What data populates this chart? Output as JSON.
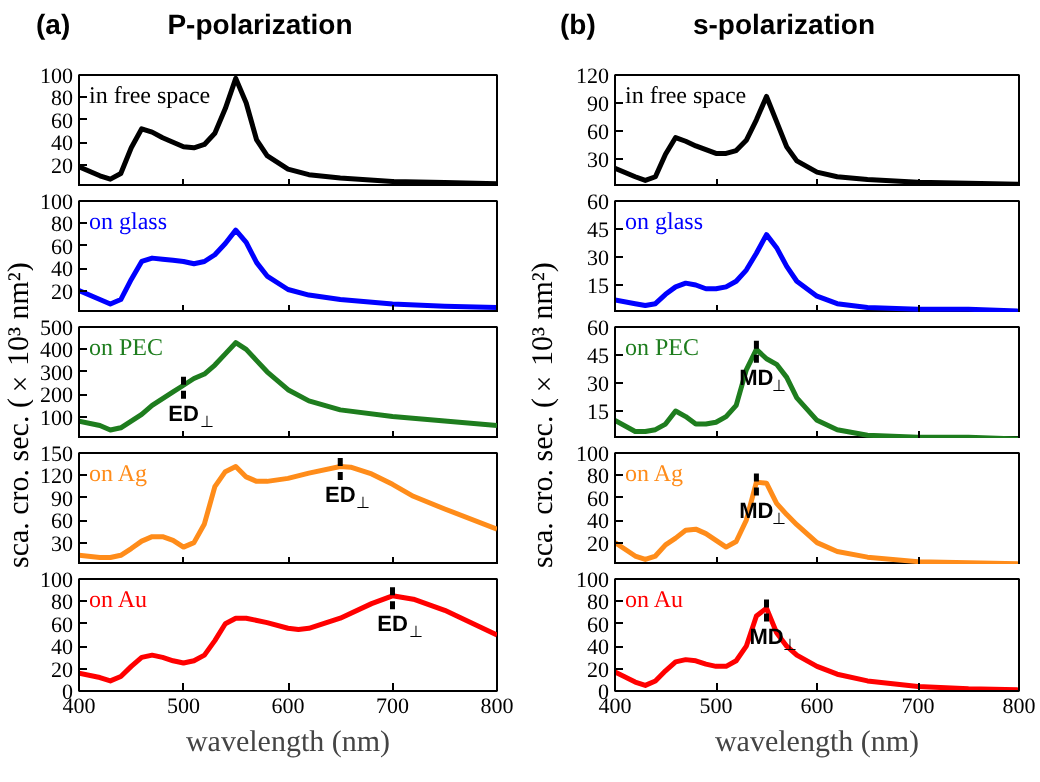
{
  "chart_data": [
    {
      "type": "line",
      "title": "P-polarization",
      "annotations": [
        "(a)"
      ],
      "tick_labels": "y",
      "x": [
        400,
        420,
        430,
        440,
        450,
        460,
        470,
        480,
        490,
        500,
        510,
        520,
        530,
        540,
        550,
        560,
        570,
        580,
        600,
        620,
        650,
        700,
        750,
        800
      ],
      "xlim": [
        400,
        800
      ],
      "xticks": [
        400,
        500,
        600,
        700,
        800
      ],
      "ylim": [
        0,
        100
      ],
      "yticks": [
        20,
        40,
        60,
        80,
        100
      ],
      "series": [
        {
          "name": "in free space",
          "color": "#000000",
          "values": [
            18,
            10,
            7,
            12,
            35,
            52,
            49,
            44,
            40,
            36,
            35,
            38,
            48,
            70,
            97,
            75,
            42,
            28,
            16,
            11,
            8,
            5,
            4,
            3
          ]
        }
      ]
    },
    {
      "type": "line",
      "tick_labels": "y",
      "x": [
        400,
        420,
        430,
        440,
        450,
        460,
        470,
        480,
        490,
        500,
        510,
        520,
        530,
        540,
        550,
        560,
        570,
        580,
        600,
        620,
        650,
        700,
        750,
        800
      ],
      "xlim": [
        400,
        800
      ],
      "xticks": [
        400,
        500,
        600,
        700,
        800
      ],
      "ylim": [
        0,
        100
      ],
      "yticks": [
        20,
        40,
        60,
        80,
        100
      ],
      "series": [
        {
          "name": "on glass",
          "color": "#0000ff",
          "values": [
            20,
            12,
            8,
            12,
            30,
            46,
            49,
            48,
            47,
            46,
            44,
            46,
            52,
            62,
            74,
            63,
            45,
            33,
            21,
            16,
            12,
            8,
            6,
            5
          ]
        }
      ]
    },
    {
      "type": "line",
      "ylabel": "sca. cro. sec. (×10³ nm²)",
      "tick_labels": "y",
      "x": [
        400,
        420,
        430,
        440,
        450,
        460,
        470,
        480,
        490,
        500,
        510,
        520,
        530,
        540,
        550,
        560,
        570,
        580,
        600,
        620,
        650,
        700,
        750,
        800
      ],
      "xlim": [
        400,
        800
      ],
      "xticks": [
        400,
        500,
        600,
        700,
        800
      ],
      "ylim": [
        0,
        500
      ],
      "yticks": [
        100,
        200,
        300,
        400,
        500
      ],
      "annotations": [
        {
          "text": "ED$_{⊥}$",
          "x": 500,
          "y": 240
        }
      ],
      "series": [
        {
          "name": "on PEC",
          "color": "#1e7d1e",
          "values": [
            80,
            60,
            40,
            50,
            80,
            110,
            150,
            180,
            210,
            240,
            270,
            290,
            330,
            380,
            430,
            400,
            350,
            300,
            220,
            170,
            130,
            100,
            80,
            60
          ]
        }
      ]
    },
    {
      "type": "line",
      "tick_labels": "y",
      "x": [
        400,
        420,
        430,
        440,
        450,
        460,
        470,
        480,
        490,
        500,
        510,
        520,
        530,
        540,
        550,
        560,
        570,
        580,
        600,
        620,
        650,
        660,
        680,
        700,
        720,
        750,
        800
      ],
      "xlim": [
        400,
        800
      ],
      "xticks": [
        400,
        500,
        600,
        700,
        800
      ],
      "ylim": [
        0,
        150
      ],
      "yticks": [
        30,
        60,
        90,
        120,
        150
      ],
      "annotations": [
        {
          "text": "ED$_{⊥}$",
          "x": 650,
          "y": 132
        }
      ],
      "series": [
        {
          "name": "on Ag",
          "color": "#ff8c1a",
          "values": [
            13,
            10,
            10,
            13,
            22,
            32,
            38,
            38,
            33,
            24,
            30,
            55,
            105,
            125,
            132,
            118,
            112,
            112,
            116,
            123,
            132,
            131,
            122,
            108,
            92,
            75,
            48
          ]
        }
      ]
    },
    {
      "type": "line",
      "xlabel": "wavelength (nm)",
      "x": [
        400,
        420,
        430,
        440,
        450,
        460,
        470,
        480,
        490,
        500,
        510,
        520,
        530,
        540,
        550,
        560,
        580,
        600,
        610,
        620,
        650,
        680,
        700,
        720,
        750,
        800
      ],
      "xlim": [
        400,
        800
      ],
      "xticks": [
        400,
        500,
        600,
        700,
        800
      ],
      "ylim": [
        0,
        100
      ],
      "yticks": [
        0,
        20,
        40,
        60,
        80,
        100
      ],
      "annotations": [
        {
          "text": "ED$_{⊥}$",
          "x": 700,
          "y": 85
        }
      ],
      "series": [
        {
          "name": "on Au",
          "color": "#ff0000",
          "values": [
            16,
            12,
            9,
            13,
            22,
            30,
            32,
            30,
            27,
            25,
            27,
            32,
            45,
            60,
            65,
            65,
            61,
            56,
            55,
            56,
            65,
            78,
            85,
            82,
            72,
            50
          ]
        }
      ]
    },
    {
      "type": "line",
      "title": "s-polarization",
      "annotations": [
        "(b)"
      ],
      "tick_labels": "y",
      "x": [
        400,
        420,
        430,
        440,
        450,
        460,
        470,
        480,
        490,
        500,
        510,
        520,
        530,
        540,
        550,
        560,
        570,
        580,
        600,
        620,
        650,
        700,
        750,
        800
      ],
      "xlim": [
        400,
        800
      ],
      "xticks": [
        400,
        500,
        600,
        700,
        800
      ],
      "ylim": [
        0,
        120
      ],
      "yticks": [
        30,
        60,
        90,
        120
      ],
      "series": [
        {
          "name": "in free space",
          "color": "#000000",
          "values": [
            20,
            11,
            7,
            11,
            35,
            53,
            49,
            44,
            40,
            36,
            36,
            39,
            50,
            72,
            97,
            70,
            43,
            28,
            16,
            11,
            8,
            5,
            4,
            3
          ]
        }
      ]
    },
    {
      "type": "line",
      "tick_labels": "y",
      "x": [
        400,
        420,
        430,
        440,
        450,
        460,
        470,
        480,
        490,
        500,
        510,
        520,
        530,
        540,
        550,
        560,
        570,
        580,
        600,
        620,
        650,
        700,
        750,
        800
      ],
      "xlim": [
        400,
        800
      ],
      "xticks": [
        400,
        500,
        600,
        700,
        800
      ],
      "ylim": [
        0,
        60
      ],
      "yticks": [
        15,
        30,
        45,
        60
      ],
      "series": [
        {
          "name": "on glass",
          "color": "#0000ff",
          "values": [
            7,
            5,
            4,
            5,
            10,
            14,
            16,
            15,
            13,
            13,
            14,
            17,
            23,
            32,
            42,
            35,
            25,
            17,
            9,
            5,
            3,
            2,
            2,
            1
          ]
        }
      ]
    },
    {
      "type": "line",
      "ylabel": "sca. cro. sec. (×10³ nm²)",
      "tick_labels": "y",
      "x": [
        400,
        420,
        430,
        440,
        450,
        460,
        470,
        480,
        490,
        500,
        510,
        520,
        530,
        540,
        550,
        560,
        570,
        580,
        600,
        620,
        650,
        700,
        750,
        800
      ],
      "xlim": [
        400,
        800
      ],
      "xticks": [
        400,
        500,
        600,
        700,
        800
      ],
      "ylim": [
        0,
        60
      ],
      "yticks": [
        15,
        30,
        45,
        60
      ],
      "annotations": [
        {
          "text": "MD$_{⊥}$",
          "x": 540,
          "y": 48
        }
      ],
      "series": [
        {
          "name": "on PEC",
          "color": "#1e7d1e",
          "values": [
            10,
            4,
            4,
            5,
            8,
            15,
            12,
            8,
            8,
            9,
            12,
            18,
            37,
            48,
            43,
            40,
            33,
            22,
            10,
            5,
            2,
            1,
            1,
            0
          ]
        }
      ]
    },
    {
      "type": "line",
      "tick_labels": "y",
      "x": [
        400,
        420,
        430,
        440,
        450,
        460,
        470,
        480,
        490,
        500,
        510,
        520,
        530,
        540,
        550,
        560,
        570,
        580,
        600,
        620,
        650,
        700,
        750,
        800
      ],
      "xlim": [
        400,
        800
      ],
      "xticks": [
        400,
        500,
        600,
        700,
        800
      ],
      "ylim": [
        0,
        100
      ],
      "yticks": [
        20,
        40,
        60,
        80,
        100
      ],
      "annotations": [
        {
          "text": "MD$_{⊥}$",
          "x": 540,
          "y": 74
        }
      ],
      "series": [
        {
          "name": "on Ag",
          "color": "#ff8c1a",
          "values": [
            20,
            8,
            5,
            8,
            18,
            24,
            31,
            32,
            28,
            22,
            16,
            21,
            40,
            74,
            73,
            55,
            45,
            36,
            20,
            12,
            7,
            3,
            2,
            1
          ]
        }
      ]
    },
    {
      "type": "line",
      "xlabel": "wavelength (nm)",
      "x": [
        400,
        420,
        430,
        440,
        450,
        460,
        470,
        480,
        490,
        500,
        510,
        520,
        530,
        540,
        550,
        560,
        570,
        580,
        600,
        620,
        650,
        700,
        750,
        800
      ],
      "xlim": [
        400,
        800
      ],
      "xticks": [
        400,
        500,
        600,
        700,
        800
      ],
      "ylim": [
        0,
        100
      ],
      "yticks": [
        0,
        20,
        40,
        60,
        80,
        100
      ],
      "annotations": [
        {
          "text": "MD$_{⊥}$",
          "x": 550,
          "y": 74
        }
      ],
      "series": [
        {
          "name": "on Au",
          "color": "#ff0000",
          "values": [
            17,
            8,
            5,
            9,
            18,
            26,
            28,
            27,
            24,
            22,
            22,
            27,
            40,
            67,
            74,
            52,
            40,
            32,
            22,
            15,
            9,
            4,
            2,
            1
          ]
        }
      ]
    }
  ]
}
